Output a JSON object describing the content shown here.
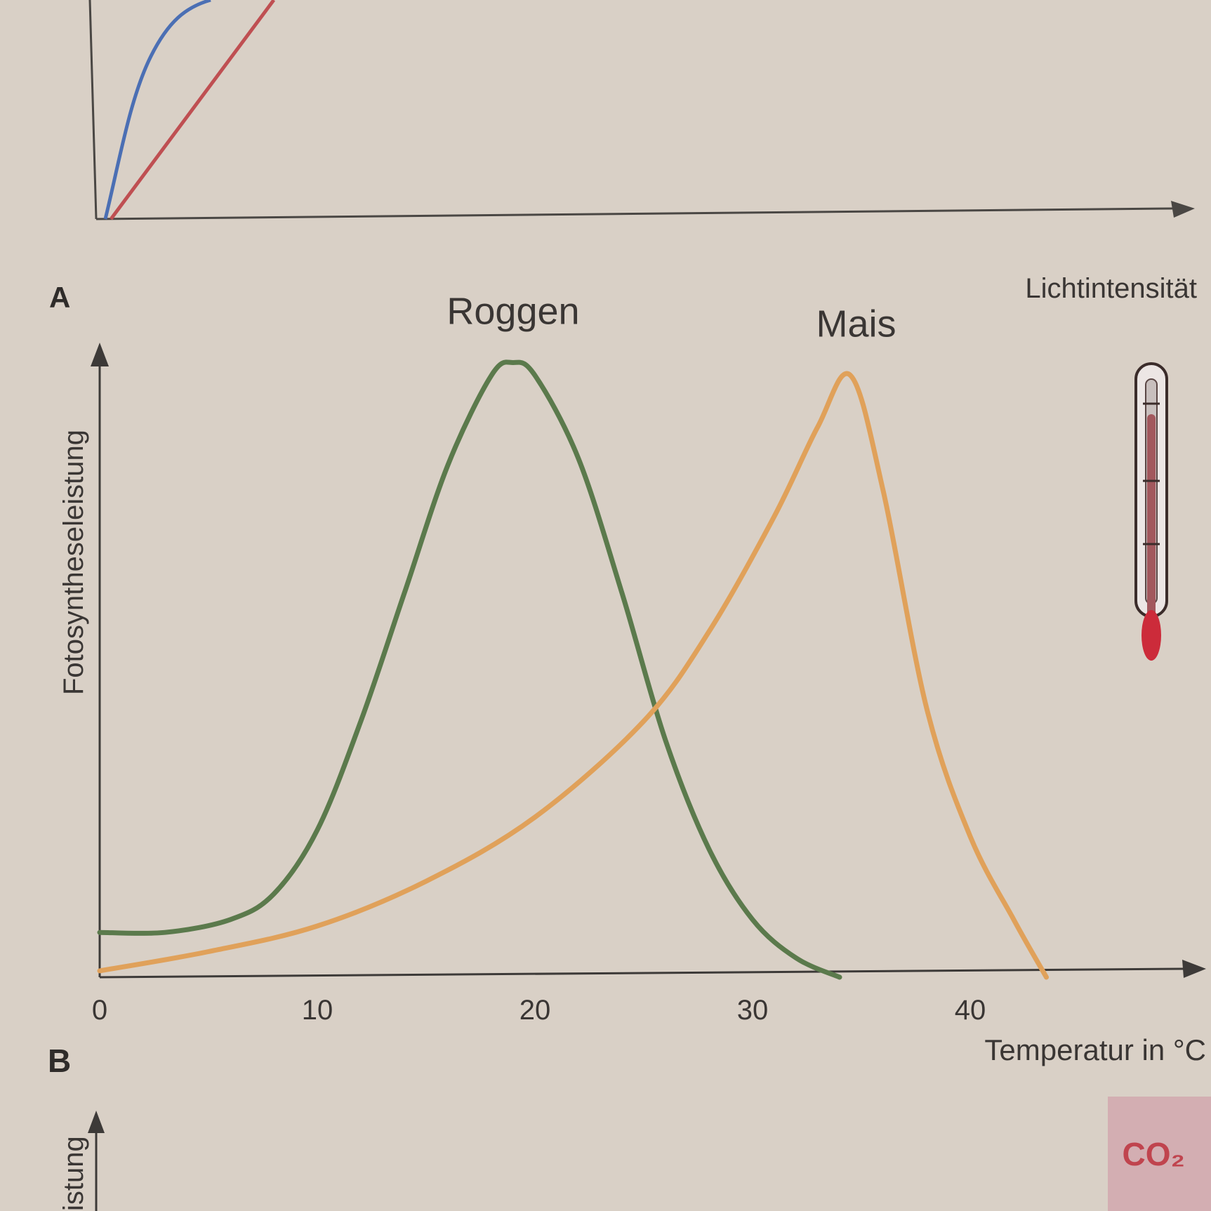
{
  "figure_a": {
    "panel_letter": "A",
    "xlabel": "Lichtintensität",
    "colors": {
      "series_1": "#4b6fb4",
      "series_2": "#bf4f52",
      "axis": "#4a4744"
    }
  },
  "figure_b": {
    "panel_letter": "B",
    "icon": "thermometer-icon"
  },
  "figure_c": {
    "ylabel_partial": "istung",
    "co2_label": "CO₂",
    "colors": {
      "co2": "#c0444e"
    }
  },
  "chart_data": {
    "type": "line",
    "title": "",
    "xlabel": "Temperatur in °C",
    "ylabel": "Fotosyntheseleistung",
    "xlim": [
      0,
      50
    ],
    "ylim": [
      0,
      100
    ],
    "x_ticks": [
      0,
      10,
      20,
      30,
      40
    ],
    "grid": false,
    "series": [
      {
        "name": "Roggen",
        "color": "#5b7a4c",
        "x": [
          0,
          3,
          6,
          8,
          10,
          12,
          14,
          16,
          18,
          19,
          20,
          22,
          24,
          26,
          28,
          30,
          32,
          34
        ],
        "y": [
          7,
          7,
          9,
          13,
          23,
          40,
          60,
          80,
          94,
          96,
          94,
          81,
          60,
          37,
          20,
          9,
          3,
          0
        ]
      },
      {
        "name": "Mais",
        "color": "#e0a15a",
        "x": [
          0,
          5,
          10,
          15,
          20,
          25,
          28,
          31,
          33,
          34.5,
          36,
          38,
          40,
          42,
          43.5
        ],
        "y": [
          1,
          4,
          8,
          15,
          25,
          40,
          54,
          72,
          86,
          94,
          76,
          42,
          22,
          9,
          0
        ]
      }
    ]
  }
}
